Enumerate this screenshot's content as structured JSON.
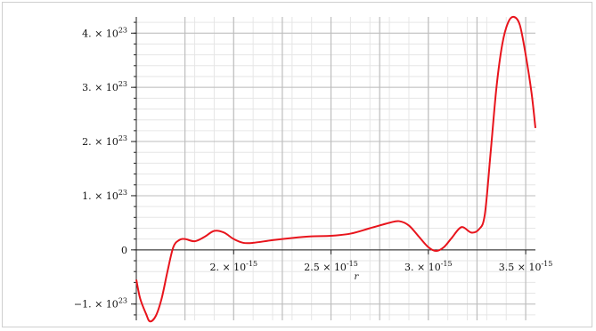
{
  "chart_data": {
    "type": "line",
    "title": "",
    "xlabel": "r",
    "ylabel": "",
    "xlim": [
      1.5e-15,
      3.55e-15
    ],
    "ylim": [
      -1.3e+23,
      4.3e+23
    ],
    "grid": true,
    "x_ticks": [
      {
        "value": 2e-15,
        "mantissa": "2.",
        "exp": "-15"
      },
      {
        "value": 2.5e-15,
        "mantissa": "2.5",
        "exp": "-15"
      },
      {
        "value": 3e-15,
        "mantissa": "3.",
        "exp": "-15"
      },
      {
        "value": 3.5e-15,
        "mantissa": "3.5",
        "exp": "-15"
      }
    ],
    "y_ticks": [
      {
        "value": -1e+23,
        "mantissa": "−1.",
        "exp": "23"
      },
      {
        "value": 0,
        "mantissa": "0",
        "exp": ""
      },
      {
        "value": 1e+23,
        "mantissa": "1.",
        "exp": "23"
      },
      {
        "value": 2e+23,
        "mantissa": "2.",
        "exp": "23"
      },
      {
        "value": 3e+23,
        "mantissa": "3.",
        "exp": "23"
      },
      {
        "value": 4e+23,
        "mantissa": "4.",
        "exp": "23"
      }
    ],
    "series": [
      {
        "color": "#e8141c",
        "points": [
          [
            1.5e-15,
            -5.5e+22
          ],
          [
            1.52e-15,
            -9e+22
          ],
          [
            1.55e-15,
            -1.18e+23
          ],
          [
            1.57e-15,
            -1.32e+23
          ],
          [
            1.6e-15,
            -1.22e+23
          ],
          [
            1.63e-15,
            -9e+22
          ],
          [
            1.66e-15,
            -4e+22
          ],
          [
            1.69e-15,
            5e+21
          ],
          [
            1.72e-15,
            1.8e+22
          ],
          [
            1.75e-15,
            2e+22
          ],
          [
            1.8e-15,
            1.6e+22
          ],
          [
            1.85e-15,
            2.4e+22
          ],
          [
            1.9e-15,
            3.5e+22
          ],
          [
            1.95e-15,
            3.2e+22
          ],
          [
            2e-15,
            2e+22
          ],
          [
            2.05e-15,
            1.3e+22
          ],
          [
            2.1e-15,
            1.3e+22
          ],
          [
            2.2e-15,
            1.8e+22
          ],
          [
            2.3e-15,
            2.2e+22
          ],
          [
            2.4e-15,
            2.5e+22
          ],
          [
            2.5e-15,
            2.6e+22
          ],
          [
            2.6e-15,
            3e+22
          ],
          [
            2.7e-15,
            4e+22
          ],
          [
            2.8e-15,
            5e+22
          ],
          [
            2.85e-15,
            5.3e+22
          ],
          [
            2.9e-15,
            4.5e+22
          ],
          [
            2.95e-15,
            2.5e+22
          ],
          [
            3e-15,
            5e+21
          ],
          [
            3.04e-15,
            -2e+21
          ],
          [
            3.08e-15,
            5e+21
          ],
          [
            3.12e-15,
            2.2e+22
          ],
          [
            3.17e-15,
            4.2e+22
          ],
          [
            3.22e-15,
            3.2e+22
          ],
          [
            3.26e-15,
            3.8e+22
          ],
          [
            3.29e-15,
            6.5e+22
          ],
          [
            3.32e-15,
            1.8e+23
          ],
          [
            3.35e-15,
            3e+23
          ],
          [
            3.38e-15,
            3.8e+23
          ],
          [
            3.41e-15,
            4.2e+23
          ],
          [
            3.44e-15,
            4.3e+23
          ],
          [
            3.47e-15,
            4.15e+23
          ],
          [
            3.5e-15,
            3.6e+23
          ],
          [
            3.53e-15,
            2.9e+23
          ],
          [
            3.55e-15,
            2.25e+23
          ]
        ]
      }
    ]
  }
}
